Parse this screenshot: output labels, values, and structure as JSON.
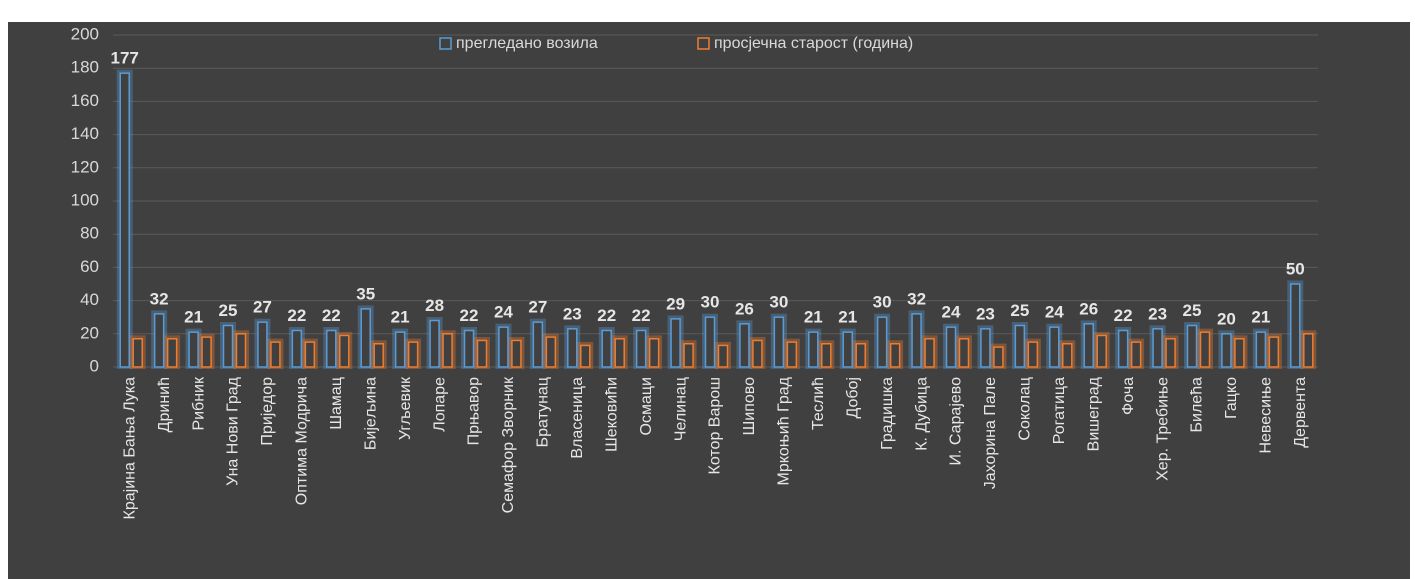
{
  "chart_data": {
    "type": "bar",
    "categories": [
      "Крајина Бања Лука",
      "Дринић",
      "Рибник",
      "Уна Нови Град",
      "Приједор",
      "Оптима Модрича",
      "Шамац",
      "Бијељина",
      "Угљевик",
      "Лопаре",
      "Прњавор",
      "Семафор Зворник",
      "Братунац",
      "Власеница",
      "Шековићи",
      "Осмаци",
      "Челинац",
      "Котор Варош",
      "Шипово",
      "Мркоњић Град",
      "Теслић",
      "Добој",
      "Градишка",
      "К. Дубица",
      "И. Сарајево",
      "Јахорина Пале",
      "Соколац",
      "Рогатица",
      "Вишеград",
      "Фоча",
      "Хер. Требиње",
      "Билећа",
      "Гацко",
      "Невесиње",
      "Дервента"
    ],
    "series": [
      {
        "name": "прегледано возила",
        "color": "#5b9bd5",
        "values": [
          177,
          32,
          21,
          25,
          27,
          22,
          22,
          35,
          21,
          28,
          22,
          24,
          27,
          23,
          22,
          22,
          29,
          30,
          26,
          30,
          21,
          21,
          30,
          32,
          24,
          23,
          25,
          24,
          26,
          22,
          23,
          25,
          20,
          21,
          50
        ]
      },
      {
        "name": "просјечна старост (година)",
        "color": "#ed7d31",
        "values": [
          17,
          17,
          18,
          20,
          15,
          15,
          19,
          14,
          15,
          20,
          16,
          16,
          18,
          13,
          17,
          17,
          14,
          13,
          16,
          15,
          14,
          14,
          14,
          17,
          17,
          12,
          15,
          14,
          19,
          15,
          17,
          21,
          17,
          18,
          20
        ]
      }
    ],
    "ylim": [
      0,
      200
    ],
    "yticks": [
      0,
      20,
      40,
      60,
      80,
      100,
      120,
      140,
      160,
      180,
      200
    ],
    "grid": true,
    "legend": "top"
  }
}
